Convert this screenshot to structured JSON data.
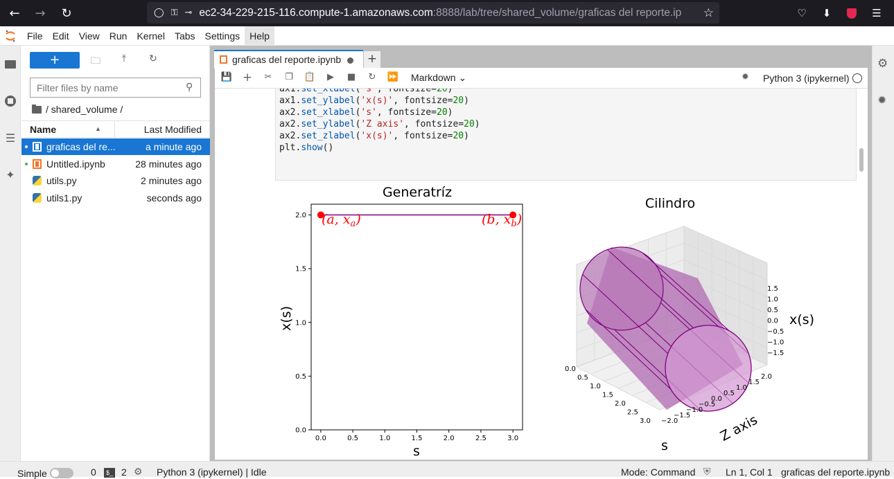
{
  "browser": {
    "url_host": "ec2-34-229-215-116.compute-1.amazonaws.com",
    "url_rest": ":8888/lab/tree/shared_volume/graficas del reporte.ip"
  },
  "menu": [
    "File",
    "Edit",
    "View",
    "Run",
    "Kernel",
    "Tabs",
    "Settings",
    "Help"
  ],
  "filebrowser": {
    "new_label": "+",
    "filter_placeholder": "Filter files by name",
    "breadcrumb": "/ shared_volume /",
    "col_name": "Name",
    "col_modified": "Last Modified",
    "files": [
      {
        "name": "graficas del re...",
        "modified": "a minute ago",
        "type": "notebook",
        "selected": true,
        "dot": "#ffffff"
      },
      {
        "name": "Untitled.ipynb",
        "modified": "28 minutes ago",
        "type": "notebook",
        "selected": false,
        "dot": "#4caf50"
      },
      {
        "name": "utils.py",
        "modified": "2 minutes ago",
        "type": "python",
        "selected": false,
        "dot": ""
      },
      {
        "name": "utils1.py",
        "modified": "seconds ago",
        "type": "python",
        "selected": false,
        "dot": ""
      }
    ]
  },
  "tab": {
    "label": "graficas del reporte.ipynb",
    "add": "+"
  },
  "notebook": {
    "cell_type": "Markdown",
    "kernel": "Python 3 (ipykernel)"
  },
  "status": {
    "simple": "Simple",
    "terminals": "0",
    "kernels": "2",
    "kernel_state": "Python 3 (ipykernel) | Idle",
    "mode": "Mode: Command",
    "cursor": "Ln 1, Col 1",
    "file": "graficas del reporte.ipynb"
  },
  "chart_data": [
    {
      "type": "line",
      "title": "Generatríz",
      "xlabel": "s",
      "ylabel": "x(s)",
      "xlim": [
        -0.15,
        3.15
      ],
      "ylim": [
        0.0,
        2.1
      ],
      "xticks": [
        "0.0",
        "0.5",
        "1.0",
        "1.5",
        "2.0",
        "2.5",
        "3.0"
      ],
      "yticks": [
        "0.0",
        "0.5",
        "1.0",
        "1.5",
        "2.0"
      ],
      "x": [
        0.0,
        3.0
      ],
      "y": [
        2.0,
        2.0
      ],
      "line_color": "#800080",
      "point_color": "#ff0000",
      "annotations": [
        {
          "text": "(a, x_a)",
          "x": 0.0,
          "y": 2.0
        },
        {
          "text": "(b, x_b)",
          "x": 3.0,
          "y": 2.0
        }
      ]
    },
    {
      "type": "surface3d",
      "title": "Cilindro",
      "xlabel": "s",
      "ylabel": "Z axis",
      "zlabel": "x(s)",
      "xticks": [
        "0.0",
        "0.5",
        "1.0",
        "1.5",
        "2.0",
        "2.5",
        "3.0"
      ],
      "yticks": [
        "−2.0",
        "−1.5",
        "−1.0",
        "−0.5",
        "0.0",
        "0.5",
        "1.0",
        "1.5",
        "2.0"
      ],
      "zticks": [
        "1.5",
        "1.0",
        "0.5",
        "0.0",
        "−0.5",
        "−1.0",
        "−1.5"
      ],
      "s_range": [
        0,
        3
      ],
      "radius": 2.0,
      "face_color": "#c77dc7",
      "edge_color": "#800080"
    }
  ]
}
